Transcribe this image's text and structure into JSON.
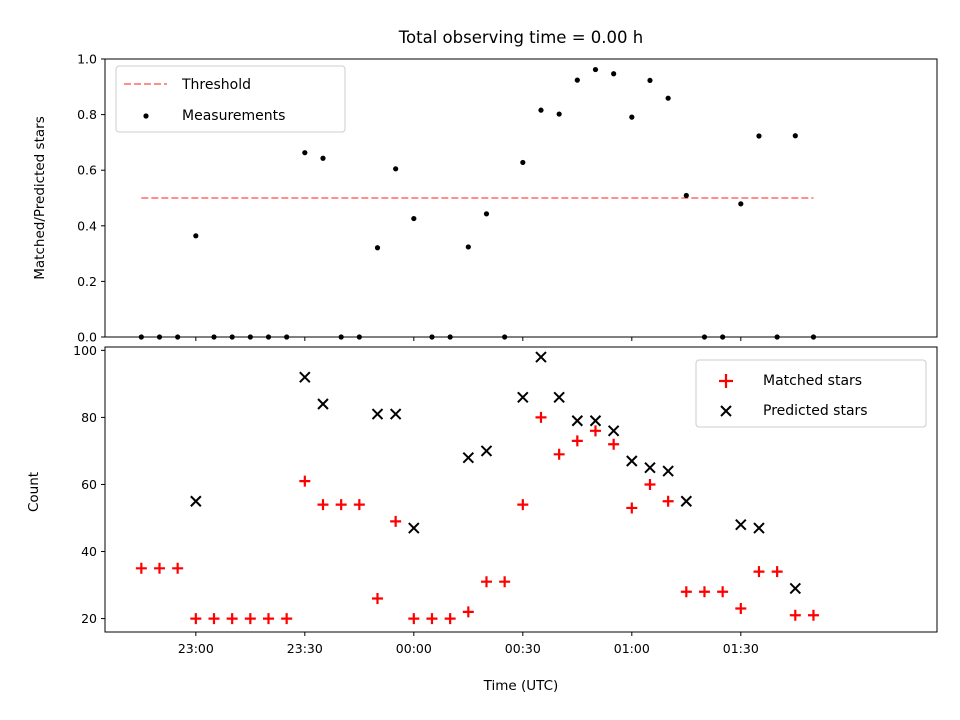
{
  "chart_data": [
    {
      "type": "scatter",
      "title": "Total observing time = 0.00 h",
      "ylabel": "Matched/Predicted stars",
      "xlabel": "",
      "ylim": [
        0,
        1.0
      ],
      "yticks": [
        "0.0",
        "0.2",
        "0.4",
        "0.6",
        "0.8",
        "1.0"
      ],
      "grid": false,
      "legend_position": "top-left",
      "threshold": {
        "name": "Threshold",
        "value": 0.5,
        "x_range": [
          "22:45",
          "01:50"
        ],
        "color": "#ff7f7f",
        "style": "dashed"
      },
      "series": [
        {
          "name": "Measurements",
          "color": "#000000",
          "marker": "dot",
          "points": [
            [
              "22:45",
              0.0
            ],
            [
              "22:50",
              0.0
            ],
            [
              "22:55",
              0.0
            ],
            [
              "23:00",
              0.364
            ],
            [
              "23:05",
              0.0
            ],
            [
              "23:10",
              0.0
            ],
            [
              "23:15",
              0.0
            ],
            [
              "23:20",
              0.0
            ],
            [
              "23:25",
              0.0
            ],
            [
              "23:30",
              0.663
            ],
            [
              "23:35",
              0.643
            ],
            [
              "23:40",
              0.0
            ],
            [
              "23:45",
              0.0
            ],
            [
              "23:50",
              0.321
            ],
            [
              "23:55",
              0.605
            ],
            [
              "00:00",
              0.426
            ],
            [
              "00:05",
              0.0
            ],
            [
              "00:10",
              0.0
            ],
            [
              "00:15",
              0.324
            ],
            [
              "00:20",
              0.443
            ],
            [
              "00:25",
              0.0
            ],
            [
              "00:30",
              0.628
            ],
            [
              "00:35",
              0.816
            ],
            [
              "00:40",
              0.802
            ],
            [
              "00:45",
              0.924
            ],
            [
              "00:50",
              0.962
            ],
            [
              "00:55",
              0.947
            ],
            [
              "01:00",
              0.791
            ],
            [
              "01:05",
              0.923
            ],
            [
              "01:10",
              0.859
            ],
            [
              "01:15",
              0.509
            ],
            [
              "01:20",
              0.0
            ],
            [
              "01:25",
              0.0
            ],
            [
              "01:30",
              0.479
            ],
            [
              "01:35",
              0.723
            ],
            [
              "01:40",
              0.0
            ],
            [
              "01:45",
              0.724
            ],
            [
              "01:50",
              0.0
            ]
          ]
        }
      ]
    },
    {
      "type": "scatter",
      "title": "",
      "ylabel": "Count",
      "xlabel": "Time (UTC)",
      "ylim": [
        16,
        101
      ],
      "yticks": [
        "20",
        "40",
        "60",
        "80",
        "100"
      ],
      "xticks": [
        "23:00",
        "23:30",
        "00:00",
        "00:30",
        "01:00",
        "01:30"
      ],
      "grid": false,
      "legend_position": "top-right",
      "series": [
        {
          "name": "Matched stars",
          "color": "#ff0000",
          "marker": "plus",
          "points": [
            [
              "22:45",
              35
            ],
            [
              "22:50",
              35
            ],
            [
              "22:55",
              35
            ],
            [
              "23:00",
              20
            ],
            [
              "23:05",
              20
            ],
            [
              "23:10",
              20
            ],
            [
              "23:15",
              20
            ],
            [
              "23:20",
              20
            ],
            [
              "23:25",
              20
            ],
            [
              "23:30",
              61
            ],
            [
              "23:35",
              54
            ],
            [
              "23:40",
              54
            ],
            [
              "23:45",
              54
            ],
            [
              "23:50",
              26
            ],
            [
              "23:55",
              49
            ],
            [
              "00:00",
              20
            ],
            [
              "00:05",
              20
            ],
            [
              "00:10",
              20
            ],
            [
              "00:15",
              22
            ],
            [
              "00:20",
              31
            ],
            [
              "00:25",
              31
            ],
            [
              "00:30",
              54
            ],
            [
              "00:35",
              80
            ],
            [
              "00:40",
              69
            ],
            [
              "00:45",
              73
            ],
            [
              "00:50",
              76
            ],
            [
              "00:55",
              72
            ],
            [
              "01:00",
              53
            ],
            [
              "01:05",
              60
            ],
            [
              "01:10",
              55
            ],
            [
              "01:15",
              28
            ],
            [
              "01:20",
              28
            ],
            [
              "01:25",
              28
            ],
            [
              "01:30",
              23
            ],
            [
              "01:35",
              34
            ],
            [
              "01:40",
              34
            ],
            [
              "01:45",
              21
            ],
            [
              "01:50",
              21
            ]
          ]
        },
        {
          "name": "Predicted stars",
          "color": "#000000",
          "marker": "x",
          "points": [
            [
              "23:00",
              55
            ],
            [
              "23:30",
              92
            ],
            [
              "23:35",
              84
            ],
            [
              "23:50",
              81
            ],
            [
              "23:55",
              81
            ],
            [
              "00:00",
              47
            ],
            [
              "00:15",
              68
            ],
            [
              "00:20",
              70
            ],
            [
              "00:30",
              86
            ],
            [
              "00:35",
              98
            ],
            [
              "00:40",
              86
            ],
            [
              "00:45",
              79
            ],
            [
              "00:50",
              79
            ],
            [
              "00:55",
              76
            ],
            [
              "01:00",
              67
            ],
            [
              "01:05",
              65
            ],
            [
              "01:10",
              64
            ],
            [
              "01:15",
              55
            ],
            [
              "01:30",
              48
            ],
            [
              "01:35",
              47
            ],
            [
              "01:45",
              29
            ]
          ]
        }
      ]
    }
  ]
}
